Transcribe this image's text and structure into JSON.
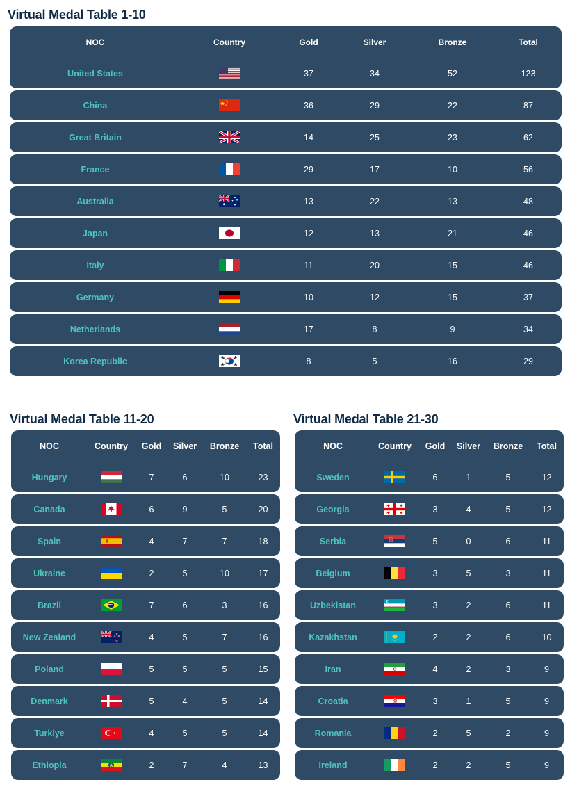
{
  "tables": [
    {
      "title": "Virtual Medal Table 1-10",
      "headers": [
        "NOC",
        "Country",
        "Gold",
        "Silver",
        "Bronze",
        "Total"
      ],
      "rows": [
        {
          "noc": "United States",
          "flag": "us-flag",
          "gold": "37",
          "silver": "34",
          "bronze": "52",
          "total": "123"
        },
        {
          "noc": "China",
          "flag": "china-flag",
          "gold": "36",
          "silver": "29",
          "bronze": "22",
          "total": "87"
        },
        {
          "noc": "Great Britain",
          "flag": "uk-flag",
          "gold": "14",
          "silver": "25",
          "bronze": "23",
          "total": "62"
        },
        {
          "noc": "France",
          "flag": "france-flag",
          "gold": "29",
          "silver": "17",
          "bronze": "10",
          "total": "56"
        },
        {
          "noc": "Australia",
          "flag": "australia-flag",
          "gold": "13",
          "silver": "22",
          "bronze": "13",
          "total": "48"
        },
        {
          "noc": "Japan",
          "flag": "japan-flag",
          "gold": "12",
          "silver": "13",
          "bronze": "21",
          "total": "46"
        },
        {
          "noc": "Italy",
          "flag": "italy-flag",
          "gold": "11",
          "silver": "20",
          "bronze": "15",
          "total": "46"
        },
        {
          "noc": "Germany",
          "flag": "germany-flag",
          "gold": "10",
          "silver": "12",
          "bronze": "15",
          "total": "37"
        },
        {
          "noc": "Netherlands",
          "flag": "netherlands-flag",
          "gold": "17",
          "silver": "8",
          "bronze": "9",
          "total": "34"
        },
        {
          "noc": "Korea Republic",
          "flag": "korea-flag",
          "gold": "8",
          "silver": "5",
          "bronze": "16",
          "total": "29"
        }
      ]
    },
    {
      "title": "Virtual Medal Table 11-20",
      "headers": [
        "NOC",
        "Country",
        "Gold",
        "Silver",
        "Bronze",
        "Total"
      ],
      "rows": [
        {
          "noc": "Hungary",
          "flag": "hungary-flag",
          "gold": "7",
          "silver": "6",
          "bronze": "10",
          "total": "23"
        },
        {
          "noc": "Canada",
          "flag": "canada-flag",
          "gold": "6",
          "silver": "9",
          "bronze": "5",
          "total": "20"
        },
        {
          "noc": "Spain",
          "flag": "spain-flag",
          "gold": "4",
          "silver": "7",
          "bronze": "7",
          "total": "18"
        },
        {
          "noc": "Ukraine",
          "flag": "ukraine-flag",
          "gold": "2",
          "silver": "5",
          "bronze": "10",
          "total": "17"
        },
        {
          "noc": "Brazil",
          "flag": "brazil-flag",
          "gold": "7",
          "silver": "6",
          "bronze": "3",
          "total": "16"
        },
        {
          "noc": "New Zealand",
          "flag": "new-zealand-flag",
          "gold": "4",
          "silver": "5",
          "bronze": "7",
          "total": "16"
        },
        {
          "noc": "Poland",
          "flag": "poland-flag",
          "gold": "5",
          "silver": "5",
          "bronze": "5",
          "total": "15"
        },
        {
          "noc": "Denmark",
          "flag": "denmark-flag",
          "gold": "5",
          "silver": "4",
          "bronze": "5",
          "total": "14"
        },
        {
          "noc": "Turkiye",
          "flag": "turkiye-flag",
          "gold": "4",
          "silver": "5",
          "bronze": "5",
          "total": "14"
        },
        {
          "noc": "Ethiopia",
          "flag": "ethiopia-flag",
          "gold": "2",
          "silver": "7",
          "bronze": "4",
          "total": "13"
        }
      ]
    },
    {
      "title": "Virtual Medal Table 21-30",
      "headers": [
        "NOC",
        "Country",
        "Gold",
        "Silver",
        "Bronze",
        "Total"
      ],
      "rows": [
        {
          "noc": "Sweden",
          "flag": "sweden-flag",
          "gold": "6",
          "silver": "1",
          "bronze": "5",
          "total": "12"
        },
        {
          "noc": "Georgia",
          "flag": "georgia-flag",
          "gold": "3",
          "silver": "4",
          "bronze": "5",
          "total": "12"
        },
        {
          "noc": "Serbia",
          "flag": "serbia-flag",
          "gold": "5",
          "silver": "0",
          "bronze": "6",
          "total": "11"
        },
        {
          "noc": "Belgium",
          "flag": "belgium-flag",
          "gold": "3",
          "silver": "5",
          "bronze": "3",
          "total": "11"
        },
        {
          "noc": "Uzbekistan",
          "flag": "uzbekistan-flag",
          "gold": "3",
          "silver": "2",
          "bronze": "6",
          "total": "11"
        },
        {
          "noc": "Kazakhstan",
          "flag": "kazakhstan-flag",
          "gold": "2",
          "silver": "2",
          "bronze": "6",
          "total": "10"
        },
        {
          "noc": "Iran",
          "flag": "iran-flag",
          "gold": "4",
          "silver": "2",
          "bronze": "3",
          "total": "9"
        },
        {
          "noc": "Croatia",
          "flag": "croatia-flag",
          "gold": "3",
          "silver": "1",
          "bronze": "5",
          "total": "9"
        },
        {
          "noc": "Romania",
          "flag": "romania-flag",
          "gold": "2",
          "silver": "5",
          "bronze": "2",
          "total": "9"
        },
        {
          "noc": "Ireland",
          "flag": "ireland-flag",
          "gold": "2",
          "silver": "2",
          "bronze": "5",
          "total": "9"
        }
      ]
    }
  ],
  "colors": {
    "row_bg": "#2e4a65",
    "noc_text": "#4ec5b8",
    "title_text": "#0f2a44"
  }
}
